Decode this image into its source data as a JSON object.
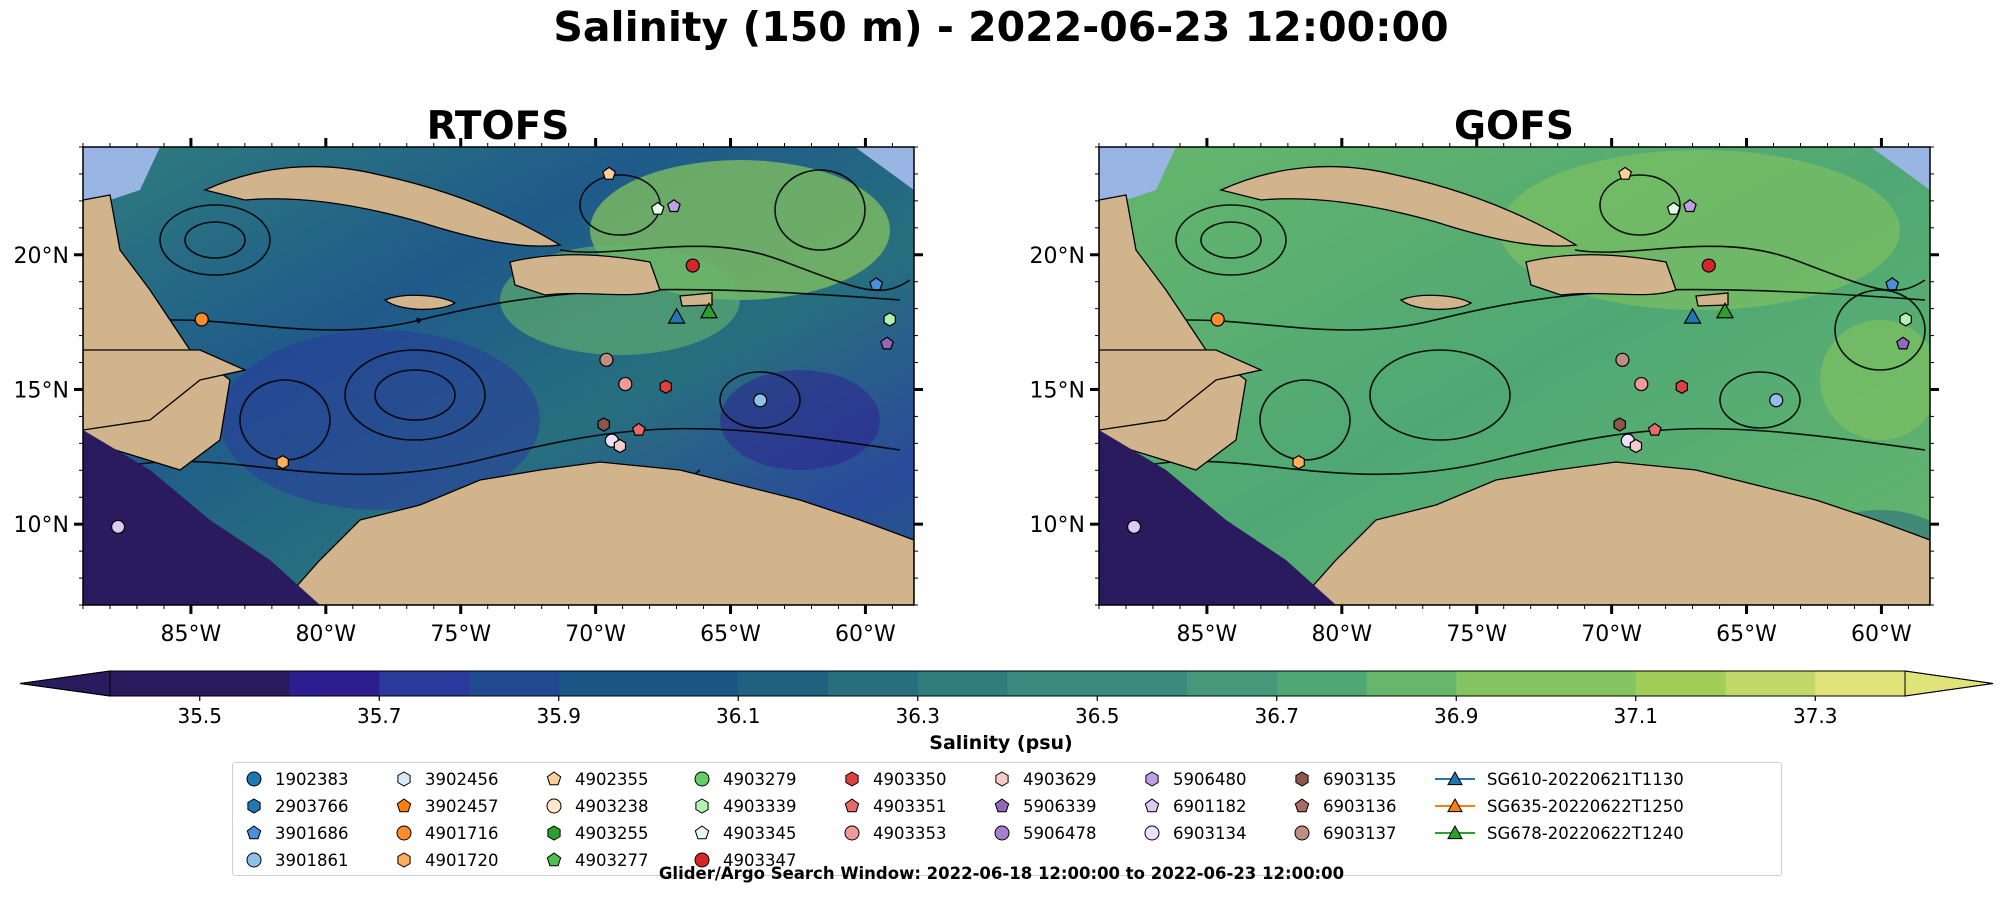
{
  "figure": {
    "title": "Salinity (150 m) - 2022-06-23 12:00:00",
    "footnote": "Glider/Argo Search Window: 2022-06-18 12:00:00 to 2022-06-23 12:00:00"
  },
  "colors": {
    "land": "#d2b48c",
    "shelf": "#98b5e3",
    "colormap": [
      "#2a1a5e",
      "#2d1e8f",
      "#2a3a9c",
      "#1f4a92",
      "#1a5685",
      "#1f6280",
      "#276f7e",
      "#2f7d7d",
      "#3a8a7d",
      "#459879",
      "#4fa874",
      "#66b66c",
      "#84c35f",
      "#a1cd59",
      "#c1d76a",
      "#dfe37a"
    ]
  },
  "chart_data": [
    {
      "type": "heatmap",
      "title": "RTOFS",
      "variable": "Salinity (psu)",
      "depth_m": 150,
      "xlim": [
        -89,
        -58.2
      ],
      "ylim": [
        7,
        24
      ],
      "xticks": [
        -85,
        -80,
        -75,
        -70,
        -65,
        -60
      ],
      "xtick_labels": [
        "85°W",
        "80°W",
        "75°W",
        "70°W",
        "65°W",
        "60°W"
      ],
      "yticks": [
        10,
        15,
        20
      ],
      "ytick_labels": [
        "10°N",
        "15°N",
        "20°N"
      ]
    },
    {
      "type": "heatmap",
      "title": "GOFS",
      "variable": "Salinity (psu)",
      "depth_m": 150,
      "xlim": [
        -89,
        -58.2
      ],
      "ylim": [
        7,
        24
      ],
      "xticks": [
        -85,
        -80,
        -75,
        -70,
        -65,
        -60
      ],
      "xtick_labels": [
        "85°W",
        "80°W",
        "75°W",
        "70°W",
        "65°W",
        "60°W"
      ],
      "yticks": [
        10,
        15,
        20
      ],
      "ytick_labels": [
        "10°N",
        "15°N",
        "20°N"
      ]
    }
  ],
  "colorbar": {
    "label": "Salinity (psu)",
    "min": 35.4,
    "max": 37.4,
    "step": 0.1,
    "ticks": [
      "35.5",
      "35.7",
      "35.9",
      "36.1",
      "36.3",
      "36.5",
      "36.7",
      "36.9",
      "37.1",
      "37.3"
    ],
    "extend": "both"
  },
  "legend": {
    "columns": [
      [
        {
          "label": "1902383",
          "marker": "circle",
          "color": "#1f77b4"
        },
        {
          "label": "2903766",
          "marker": "hexagon",
          "color": "#1f77b4"
        },
        {
          "label": "3901686",
          "marker": "pentagon",
          "color": "#4a90d9"
        },
        {
          "label": "3901861",
          "marker": "circle",
          "color": "#8ec0ea"
        }
      ],
      [
        {
          "label": "3902456",
          "marker": "hexagon",
          "color": "#d7eafb"
        },
        {
          "label": "3902457",
          "marker": "pentagon",
          "color": "#ff7f0e"
        },
        {
          "label": "4901716",
          "marker": "circle",
          "color": "#ff8c2a"
        },
        {
          "label": "4901720",
          "marker": "hexagon",
          "color": "#ffae5c"
        }
      ],
      [
        {
          "label": "4902355",
          "marker": "pentagon",
          "color": "#ffcf99"
        },
        {
          "label": "4903238",
          "marker": "circle",
          "color": "#ffe8cc"
        },
        {
          "label": "4903255",
          "marker": "hexagon",
          "color": "#2ca02c"
        },
        {
          "label": "4903277",
          "marker": "pentagon",
          "color": "#4cbf4c"
        }
      ],
      [
        {
          "label": "4903279",
          "marker": "circle",
          "color": "#66cc66"
        },
        {
          "label": "4903339",
          "marker": "hexagon",
          "color": "#b3f0b3"
        },
        {
          "label": "4903345",
          "marker": "pentagon",
          "color": "#e6fbe6"
        },
        {
          "label": "4903347",
          "marker": "circle",
          "color": "#d62728"
        }
      ],
      [
        {
          "label": "4903350",
          "marker": "hexagon",
          "color": "#e04040"
        },
        {
          "label": "4903351",
          "marker": "pentagon",
          "color": "#ea6a6a"
        },
        {
          "label": "4903353",
          "marker": "circle",
          "color": "#f29a9a"
        }
      ],
      [
        {
          "label": "4903629",
          "marker": "hexagon",
          "color": "#f9caca"
        },
        {
          "label": "5906339",
          "marker": "pentagon",
          "color": "#9467bd"
        },
        {
          "label": "5906478",
          "marker": "circle",
          "color": "#a57fd0"
        }
      ],
      [
        {
          "label": "5906480",
          "marker": "hexagon",
          "color": "#c0a0e4"
        },
        {
          "label": "6901182",
          "marker": "pentagon",
          "color": "#dccaf4"
        },
        {
          "label": "6903134",
          "marker": "circle",
          "color": "#eee0fb"
        }
      ],
      [
        {
          "label": "6903135",
          "marker": "hexagon",
          "color": "#8c564b"
        },
        {
          "label": "6903136",
          "marker": "pentagon",
          "color": "#a86d60"
        },
        {
          "label": "6903137",
          "marker": "circle",
          "color": "#c08e80"
        }
      ],
      [
        {
          "label": "SG610-20220621T1130",
          "marker": "triangle-line",
          "color": "#1f77b4"
        },
        {
          "label": "SG635-20220622T1250",
          "marker": "triangle-line",
          "color": "#ff7f0e"
        },
        {
          "label": "SG678-20220622T1240",
          "marker": "triangle-line",
          "color": "#2ca02c"
        }
      ]
    ]
  },
  "floats": [
    {
      "lon": -87.7,
      "lat": 9.9,
      "color": "#dccaf4",
      "marker": "circle"
    },
    {
      "lon": -84.6,
      "lat": 17.6,
      "color": "#ff8c2a",
      "marker": "circle"
    },
    {
      "lon": -81.6,
      "lat": 12.3,
      "color": "#ffae5c",
      "marker": "hexagon"
    },
    {
      "lon": -69.5,
      "lat": 23.0,
      "color": "#ffcf99",
      "marker": "pentagon"
    },
    {
      "lon": -67.7,
      "lat": 21.7,
      "color": "#e6fbe6",
      "marker": "pentagon"
    },
    {
      "lon": -67.1,
      "lat": 21.8,
      "color": "#c0a0e4",
      "marker": "pentagon"
    },
    {
      "lon": -66.4,
      "lat": 19.6,
      "color": "#d62728",
      "marker": "circle"
    },
    {
      "lon": -69.6,
      "lat": 16.1,
      "color": "#c08e80",
      "marker": "circle"
    },
    {
      "lon": -68.9,
      "lat": 15.2,
      "color": "#f29a9a",
      "marker": "circle"
    },
    {
      "lon": -67.4,
      "lat": 15.1,
      "color": "#e04040",
      "marker": "hexagon"
    },
    {
      "lon": -69.7,
      "lat": 13.7,
      "color": "#8c564b",
      "marker": "hexagon"
    },
    {
      "lon": -68.4,
      "lat": 13.5,
      "color": "#ea6a6a",
      "marker": "pentagon"
    },
    {
      "lon": -69.4,
      "lat": 13.1,
      "color": "#eee0fb",
      "marker": "circle"
    },
    {
      "lon": -69.1,
      "lat": 12.9,
      "color": "#f9caca",
      "marker": "hexagon"
    },
    {
      "lon": -63.9,
      "lat": 14.6,
      "color": "#8ec0ea",
      "marker": "circle"
    },
    {
      "lon": -59.6,
      "lat": 18.9,
      "color": "#4a90d9",
      "marker": "pentagon"
    },
    {
      "lon": -59.1,
      "lat": 17.6,
      "color": "#b3f0b3",
      "marker": "hexagon"
    },
    {
      "lon": -59.2,
      "lat": 16.7,
      "color": "#9467bd",
      "marker": "pentagon"
    }
  ],
  "gliders": [
    {
      "lon": -67.0,
      "lat": 17.7,
      "color": "#1f77b4"
    },
    {
      "lon": -65.8,
      "lat": 17.9,
      "color": "#2ca02c"
    }
  ]
}
